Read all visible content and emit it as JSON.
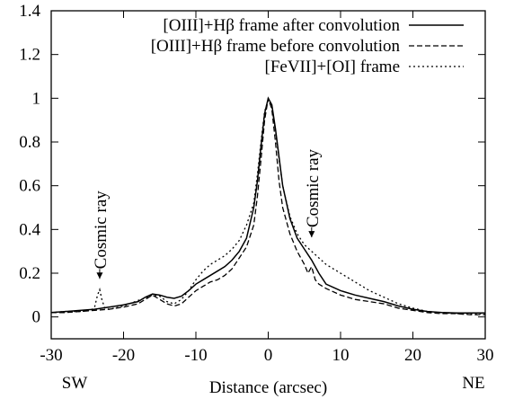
{
  "chart_data": {
    "type": "line",
    "title": "",
    "xlabel": "Distance (arcsec)",
    "ylabel": "",
    "xlim": [
      -30,
      30
    ],
    "ylim": [
      -0.1,
      1.4
    ],
    "x_ticks": [
      -30,
      -20,
      -10,
      0,
      10,
      20,
      30
    ],
    "y_ticks": [
      0,
      0.2,
      0.4,
      0.6,
      0.8,
      1,
      1.2,
      1.4
    ],
    "y_tick_labels": [
      "0",
      "0.2",
      "0.4",
      "0.6",
      "0.8",
      "1",
      "1.2",
      "1.4"
    ],
    "grid": false,
    "legend_position": "top-right",
    "direction_labels": {
      "left": "SW",
      "right": "NE"
    },
    "series": [
      {
        "name": "[OIII]+Hβ frame after convolution",
        "style": "solid",
        "x": [
          -30,
          -28,
          -26,
          -24,
          -22,
          -20,
          -18,
          -17,
          -16,
          -15,
          -14,
          -13,
          -12,
          -11,
          -10,
          -9,
          -8,
          -7,
          -6,
          -5,
          -4,
          -3,
          -2,
          -1.5,
          -1,
          -0.5,
          0,
          0.5,
          1,
          1.5,
          2,
          3,
          4,
          5,
          6,
          7,
          8,
          10,
          12,
          14,
          16,
          18,
          20,
          22,
          24,
          26,
          28,
          30
        ],
        "y": [
          0.02,
          0.025,
          0.03,
          0.035,
          0.045,
          0.055,
          0.07,
          0.09,
          0.105,
          0.1,
          0.09,
          0.085,
          0.095,
          0.12,
          0.15,
          0.17,
          0.19,
          0.21,
          0.23,
          0.26,
          0.3,
          0.36,
          0.5,
          0.62,
          0.78,
          0.93,
          1.0,
          0.97,
          0.86,
          0.73,
          0.6,
          0.45,
          0.36,
          0.31,
          0.26,
          0.2,
          0.15,
          0.12,
          0.1,
          0.085,
          0.07,
          0.05,
          0.035,
          0.025,
          0.02,
          0.018,
          0.018,
          0.018
        ]
      },
      {
        "name": "[OIII]+Hβ frame before convolution",
        "style": "dashed",
        "x": [
          -30,
          -28,
          -26,
          -24,
          -22,
          -20,
          -18,
          -17,
          -16,
          -15,
          -14,
          -13,
          -12,
          -11,
          -10,
          -9,
          -8,
          -7,
          -6,
          -5,
          -4,
          -3,
          -2,
          -1.5,
          -1,
          -0.5,
          0,
          0.5,
          1,
          1.5,
          2,
          3,
          4,
          5,
          5.5,
          6,
          6.5,
          7,
          8,
          10,
          12,
          14,
          16,
          18,
          20,
          22,
          24,
          26,
          28,
          30
        ],
        "y": [
          0.02,
          0.02,
          0.025,
          0.03,
          0.035,
          0.045,
          0.06,
          0.08,
          0.1,
          0.08,
          0.06,
          0.05,
          0.06,
          0.09,
          0.12,
          0.14,
          0.16,
          0.17,
          0.19,
          0.22,
          0.27,
          0.32,
          0.42,
          0.55,
          0.72,
          0.9,
          1.0,
          0.95,
          0.8,
          0.62,
          0.5,
          0.38,
          0.3,
          0.24,
          0.2,
          0.23,
          0.17,
          0.15,
          0.13,
          0.1,
          0.08,
          0.07,
          0.06,
          0.04,
          0.03,
          0.02,
          0.015,
          0.015,
          0.01,
          0.01
        ]
      },
      {
        "name": "[FeVII]+[OI] frame",
        "style": "dotted",
        "x": [
          -30,
          -28,
          -26,
          -24.5,
          -24,
          -23.6,
          -23.3,
          -23,
          -22.6,
          -22,
          -20,
          -18,
          -16,
          -15,
          -14,
          -13,
          -12,
          -11,
          -10,
          -9,
          -8,
          -7,
          -6,
          -5,
          -4,
          -3,
          -2,
          -1.5,
          -1,
          -0.5,
          0,
          0.5,
          1,
          1.5,
          2,
          3,
          4,
          5,
          6,
          7,
          8,
          10,
          12,
          14,
          16,
          18,
          20,
          22,
          24,
          26,
          28,
          30
        ],
        "y": [
          0.02,
          0.025,
          0.025,
          0.03,
          0.045,
          0.1,
          0.125,
          0.08,
          0.04,
          0.035,
          0.05,
          0.075,
          0.1,
          0.095,
          0.07,
          0.06,
          0.08,
          0.12,
          0.17,
          0.21,
          0.24,
          0.26,
          0.28,
          0.31,
          0.35,
          0.42,
          0.52,
          0.65,
          0.8,
          0.94,
          0.99,
          0.96,
          0.85,
          0.72,
          0.6,
          0.46,
          0.38,
          0.33,
          0.3,
          0.27,
          0.24,
          0.2,
          0.16,
          0.12,
          0.09,
          0.06,
          0.04,
          0.025,
          0.02,
          0.015,
          0.015,
          0.015
        ]
      }
    ],
    "annotations": [
      {
        "name": "cosmic-ray-left",
        "text": "Cosmic ray",
        "x": -23.3,
        "y": 0.17
      },
      {
        "name": "cosmic-ray-right",
        "text": "Cosmic ray",
        "x": 6,
        "y": 0.36
      }
    ]
  }
}
